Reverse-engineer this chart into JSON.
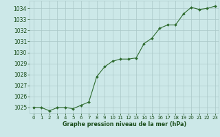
{
  "hours": [
    0,
    1,
    2,
    3,
    4,
    5,
    6,
    7,
    8,
    9,
    10,
    11,
    12,
    13,
    14,
    15,
    16,
    17,
    18,
    19,
    20,
    21,
    22,
    23
  ],
  "pressure": [
    1025.0,
    1025.0,
    1024.7,
    1025.0,
    1025.0,
    1024.9,
    1025.2,
    1025.5,
    1027.8,
    1028.7,
    1029.2,
    1029.4,
    1029.4,
    1029.5,
    1030.8,
    1031.3,
    1032.2,
    1032.5,
    1032.5,
    1033.5,
    1034.1,
    1033.9,
    1034.0,
    1034.2
  ],
  "line_color": "#2d6a2d",
  "marker_color": "#2d6a2d",
  "bg_color": "#cce8e8",
  "grid_color": "#aac8c8",
  "axis_label_color": "#1a4d1a",
  "xlabel": "Graphe pression niveau de la mer (hPa)",
  "ylim_min": 1024.5,
  "ylim_max": 1034.7,
  "xlim_min": -0.5,
  "xlim_max": 23.5,
  "yticks": [
    1025,
    1026,
    1027,
    1028,
    1029,
    1030,
    1031,
    1032,
    1033,
    1034
  ],
  "xticks": [
    0,
    1,
    2,
    3,
    4,
    5,
    6,
    7,
    8,
    9,
    10,
    11,
    12,
    13,
    14,
    15,
    16,
    17,
    18,
    19,
    20,
    21,
    22,
    23
  ]
}
